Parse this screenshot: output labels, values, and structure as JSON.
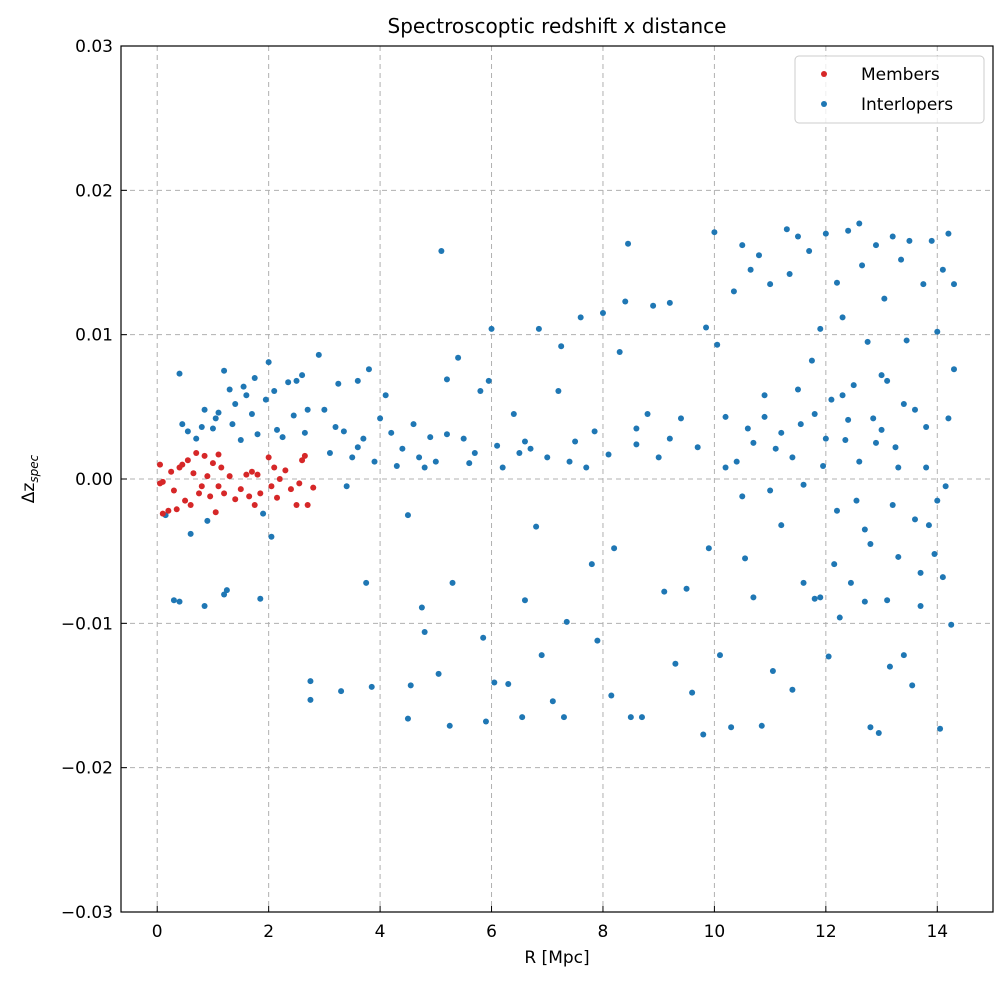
{
  "chart_data": {
    "type": "scatter",
    "title": "Spectroscoptic redshift x distance",
    "xlabel": "R [Mpc]",
    "ylabel": "Δz_spec",
    "xlim": [
      -0.65,
      15.0
    ],
    "ylim": [
      -0.03,
      0.03
    ],
    "xticks": [
      0,
      2,
      4,
      6,
      8,
      10,
      12,
      14
    ],
    "xtick_labels": [
      "0",
      "2",
      "4",
      "6",
      "8",
      "10",
      "12",
      "14"
    ],
    "yticks": [
      -0.03,
      -0.02,
      -0.01,
      0.0,
      0.01,
      0.02,
      0.03
    ],
    "ytick_labels": [
      "−0.03",
      "−0.02",
      "−0.01",
      "0.00",
      "0.01",
      "0.02",
      "0.03"
    ],
    "grid": true,
    "legend": {
      "placement": "top-right",
      "entries": [
        "Members",
        "Interlopers"
      ]
    },
    "series": [
      {
        "name": "Members",
        "color": "#d62728",
        "points": [
          [
            0.05,
            0.001
          ],
          [
            0.05,
            -0.0003
          ],
          [
            0.1,
            -0.0002
          ],
          [
            0.1,
            -0.0024
          ],
          [
            0.2,
            -0.0022
          ],
          [
            0.25,
            0.0005
          ],
          [
            0.3,
            -0.0008
          ],
          [
            0.35,
            -0.0021
          ],
          [
            0.4,
            0.0008
          ],
          [
            0.45,
            0.001
          ],
          [
            0.5,
            -0.0015
          ],
          [
            0.55,
            0.0013
          ],
          [
            0.6,
            -0.0018
          ],
          [
            0.65,
            0.0004
          ],
          [
            0.7,
            0.0018
          ],
          [
            0.75,
            -0.001
          ],
          [
            0.8,
            -0.0005
          ],
          [
            0.85,
            0.0016
          ],
          [
            0.9,
            0.0002
          ],
          [
            0.95,
            -0.0012
          ],
          [
            1.0,
            0.0011
          ],
          [
            1.05,
            -0.0023
          ],
          [
            1.1,
            0.0017
          ],
          [
            1.1,
            -0.0005
          ],
          [
            1.15,
            0.0008
          ],
          [
            1.2,
            -0.001
          ],
          [
            1.3,
            0.0002
          ],
          [
            1.4,
            -0.0014
          ],
          [
            1.5,
            -0.0007
          ],
          [
            1.6,
            0.0003
          ],
          [
            1.65,
            -0.0012
          ],
          [
            1.7,
            0.0005
          ],
          [
            1.75,
            -0.0018
          ],
          [
            1.8,
            0.0003
          ],
          [
            1.85,
            -0.001
          ],
          [
            2.0,
            0.0015
          ],
          [
            2.05,
            -0.0005
          ],
          [
            2.1,
            0.0008
          ],
          [
            2.15,
            -0.0013
          ],
          [
            2.2,
            0.0
          ],
          [
            2.3,
            0.0006
          ],
          [
            2.4,
            -0.0007
          ],
          [
            2.5,
            -0.0018
          ],
          [
            2.55,
            -0.0003
          ],
          [
            2.6,
            0.0013
          ],
          [
            2.65,
            0.0016
          ],
          [
            2.7,
            -0.0018
          ],
          [
            2.8,
            -0.0006
          ]
        ]
      },
      {
        "name": "Interlopers",
        "color": "#1f77b4",
        "points": [
          [
            0.15,
            -0.0025
          ],
          [
            0.3,
            -0.0084
          ],
          [
            0.4,
            -0.0085
          ],
          [
            0.4,
            0.0073
          ],
          [
            0.45,
            0.0038
          ],
          [
            0.55,
            0.0033
          ],
          [
            0.6,
            -0.0038
          ],
          [
            0.7,
            0.0028
          ],
          [
            0.8,
            0.0036
          ],
          [
            0.85,
            0.0048
          ],
          [
            0.85,
            -0.0088
          ],
          [
            0.9,
            -0.0029
          ],
          [
            1.0,
            0.0035
          ],
          [
            1.05,
            0.0042
          ],
          [
            1.1,
            0.0046
          ],
          [
            1.2,
            0.0075
          ],
          [
            1.2,
            -0.008
          ],
          [
            1.25,
            -0.0077
          ],
          [
            1.3,
            0.0062
          ],
          [
            1.35,
            0.0038
          ],
          [
            1.4,
            0.0052
          ],
          [
            1.5,
            0.0027
          ],
          [
            1.55,
            0.0064
          ],
          [
            1.6,
            0.0058
          ],
          [
            1.7,
            0.0045
          ],
          [
            1.75,
            0.007
          ],
          [
            1.8,
            0.0031
          ],
          [
            1.85,
            -0.0083
          ],
          [
            1.9,
            -0.0024
          ],
          [
            1.95,
            0.0055
          ],
          [
            2.0,
            0.0081
          ],
          [
            2.05,
            -0.004
          ],
          [
            2.1,
            0.0061
          ],
          [
            2.15,
            0.0034
          ],
          [
            2.25,
            0.0029
          ],
          [
            2.35,
            0.0067
          ],
          [
            2.45,
            0.0044
          ],
          [
            2.5,
            0.0068
          ],
          [
            2.6,
            0.0072
          ],
          [
            2.65,
            0.0032
          ],
          [
            2.7,
            0.0048
          ],
          [
            2.75,
            -0.014
          ],
          [
            2.75,
            -0.0153
          ],
          [
            2.9,
            0.0086
          ],
          [
            3.0,
            0.0048
          ],
          [
            3.1,
            0.0018
          ],
          [
            3.25,
            0.0066
          ],
          [
            3.3,
            -0.0147
          ],
          [
            3.35,
            0.0033
          ],
          [
            3.4,
            -0.0005
          ],
          [
            3.5,
            0.0015
          ],
          [
            3.6,
            0.0068
          ],
          [
            3.7,
            0.0028
          ],
          [
            3.75,
            -0.0072
          ],
          [
            3.8,
            0.0076
          ],
          [
            3.85,
            -0.0144
          ],
          [
            3.9,
            0.0012
          ],
          [
            4.0,
            0.0042
          ],
          [
            4.1,
            0.0058
          ],
          [
            4.2,
            0.0032
          ],
          [
            4.3,
            0.0009
          ],
          [
            4.4,
            0.0021
          ],
          [
            4.5,
            -0.0025
          ],
          [
            4.5,
            -0.0166
          ],
          [
            4.55,
            -0.0143
          ],
          [
            4.6,
            0.0038
          ],
          [
            4.7,
            0.0015
          ],
          [
            4.75,
            -0.0089
          ],
          [
            4.8,
            -0.0106
          ],
          [
            4.9,
            0.0029
          ],
          [
            5.0,
            0.0012
          ],
          [
            5.05,
            -0.0135
          ],
          [
            5.1,
            0.0158
          ],
          [
            5.2,
            0.0069
          ],
          [
            5.25,
            -0.0171
          ],
          [
            5.3,
            -0.0072
          ],
          [
            5.4,
            0.0084
          ],
          [
            5.5,
            0.0028
          ],
          [
            5.6,
            0.0011
          ],
          [
            5.8,
            0.0061
          ],
          [
            5.85,
            -0.011
          ],
          [
            5.9,
            -0.0168
          ],
          [
            5.95,
            0.0068
          ],
          [
            6.0,
            0.0104
          ],
          [
            6.05,
            -0.0141
          ],
          [
            6.1,
            0.0023
          ],
          [
            6.2,
            0.0008
          ],
          [
            6.3,
            -0.0142
          ],
          [
            6.4,
            0.0045
          ],
          [
            6.5,
            0.0018
          ],
          [
            6.55,
            -0.0165
          ],
          [
            6.6,
            -0.0084
          ],
          [
            6.7,
            0.0021
          ],
          [
            6.8,
            -0.0033
          ],
          [
            6.85,
            0.0104
          ],
          [
            6.9,
            -0.0122
          ],
          [
            7.0,
            0.0015
          ],
          [
            7.1,
            -0.0154
          ],
          [
            7.2,
            0.0061
          ],
          [
            7.25,
            0.0092
          ],
          [
            7.3,
            -0.0165
          ],
          [
            7.35,
            -0.0099
          ],
          [
            7.5,
            0.0026
          ],
          [
            7.6,
            0.0112
          ],
          [
            7.7,
            0.0008
          ],
          [
            7.8,
            -0.0059
          ],
          [
            7.85,
            0.0033
          ],
          [
            7.9,
            -0.0112
          ],
          [
            8.0,
            0.0115
          ],
          [
            8.1,
            0.0017
          ],
          [
            8.15,
            -0.015
          ],
          [
            8.2,
            -0.0048
          ],
          [
            8.3,
            0.0088
          ],
          [
            8.4,
            0.0123
          ],
          [
            8.45,
            0.0163
          ],
          [
            8.5,
            -0.0165
          ],
          [
            8.6,
            0.0024
          ],
          [
            8.7,
            -0.0165
          ],
          [
            8.8,
            0.0045
          ],
          [
            8.9,
            0.012
          ],
          [
            9.0,
            0.0015
          ],
          [
            9.1,
            -0.0078
          ],
          [
            9.2,
            0.0122
          ],
          [
            9.3,
            -0.0128
          ],
          [
            9.4,
            0.0042
          ],
          [
            9.5,
            -0.0076
          ],
          [
            9.6,
            -0.0148
          ],
          [
            9.7,
            0.0022
          ],
          [
            9.8,
            -0.0177
          ],
          [
            9.85,
            0.0105
          ],
          [
            9.9,
            -0.0048
          ],
          [
            10.0,
            0.0171
          ],
          [
            10.05,
            0.0093
          ],
          [
            10.1,
            -0.0122
          ],
          [
            10.2,
            0.0043
          ],
          [
            10.3,
            -0.0172
          ],
          [
            10.35,
            0.013
          ],
          [
            10.4,
            0.0012
          ],
          [
            10.5,
            0.0162
          ],
          [
            10.55,
            -0.0055
          ],
          [
            10.6,
            0.0035
          ],
          [
            10.65,
            0.0145
          ],
          [
            10.7,
            -0.0082
          ],
          [
            10.8,
            0.0155
          ],
          [
            10.85,
            -0.0171
          ],
          [
            10.9,
            0.0058
          ],
          [
            11.0,
            0.0135
          ],
          [
            11.05,
            -0.0133
          ],
          [
            11.1,
            0.0021
          ],
          [
            11.2,
            -0.0032
          ],
          [
            11.3,
            0.0173
          ],
          [
            11.35,
            0.0142
          ],
          [
            11.4,
            -0.0146
          ],
          [
            11.5,
            0.0168
          ],
          [
            11.55,
            0.0038
          ],
          [
            11.6,
            -0.0072
          ],
          [
            11.7,
            0.0158
          ],
          [
            11.75,
            0.0082
          ],
          [
            11.8,
            -0.0083
          ],
          [
            11.9,
            0.0104
          ],
          [
            11.95,
            0.0009
          ],
          [
            12.0,
            0.017
          ],
          [
            12.05,
            -0.0123
          ],
          [
            12.1,
            0.0055
          ],
          [
            12.15,
            -0.0059
          ],
          [
            12.2,
            0.0136
          ],
          [
            12.25,
            -0.0096
          ],
          [
            12.3,
            0.0112
          ],
          [
            12.35,
            0.0027
          ],
          [
            12.4,
            0.0172
          ],
          [
            12.45,
            -0.0072
          ],
          [
            12.5,
            0.0065
          ],
          [
            12.55,
            -0.0015
          ],
          [
            12.6,
            0.0177
          ],
          [
            12.65,
            0.0148
          ],
          [
            12.7,
            -0.0035
          ],
          [
            12.75,
            0.0095
          ],
          [
            12.8,
            -0.0172
          ],
          [
            12.85,
            0.0042
          ],
          [
            12.9,
            0.0162
          ],
          [
            12.95,
            -0.0176
          ],
          [
            13.0,
            0.0072
          ],
          [
            13.05,
            0.0125
          ],
          [
            13.1,
            -0.0084
          ],
          [
            13.15,
            -0.013
          ],
          [
            13.2,
            0.0168
          ],
          [
            13.25,
            0.0022
          ],
          [
            13.3,
            -0.0054
          ],
          [
            13.35,
            0.0152
          ],
          [
            13.4,
            -0.0122
          ],
          [
            13.45,
            0.0096
          ],
          [
            13.5,
            0.0165
          ],
          [
            13.55,
            -0.0143
          ],
          [
            13.6,
            0.0048
          ],
          [
            13.7,
            -0.0088
          ],
          [
            13.75,
            0.0135
          ],
          [
            13.8,
            0.0008
          ],
          [
            13.85,
            -0.0032
          ],
          [
            13.9,
            0.0165
          ],
          [
            13.95,
            -0.0052
          ],
          [
            14.0,
            0.0102
          ],
          [
            14.05,
            -0.0173
          ],
          [
            14.1,
            0.0145
          ],
          [
            14.15,
            -0.0005
          ],
          [
            14.2,
            0.017
          ],
          [
            14.25,
            -0.0101
          ],
          [
            14.3,
            0.0076
          ],
          [
            14.3,
            0.0135
          ],
          [
            10.2,
            0.0008
          ],
          [
            10.5,
            -0.0012
          ],
          [
            10.7,
            0.0025
          ],
          [
            11.0,
            -0.0008
          ],
          [
            11.2,
            0.0032
          ],
          [
            11.4,
            0.0015
          ],
          [
            11.6,
            -0.0004
          ],
          [
            11.8,
            0.0045
          ],
          [
            12.0,
            0.0028
          ],
          [
            12.2,
            -0.0022
          ],
          [
            12.4,
            0.0041
          ],
          [
            12.6,
            0.0012
          ],
          [
            12.8,
            -0.0045
          ],
          [
            13.0,
            0.0034
          ],
          [
            13.2,
            -0.0018
          ],
          [
            13.4,
            0.0052
          ],
          [
            13.6,
            -0.0028
          ],
          [
            13.8,
            0.0036
          ],
          [
            14.0,
            -0.0015
          ],
          [
            14.2,
            0.0042
          ],
          [
            11.5,
            0.0062
          ],
          [
            12.3,
            0.0058
          ],
          [
            13.1,
            0.0068
          ],
          [
            13.7,
            -0.0065
          ],
          [
            12.7,
            -0.0085
          ],
          [
            11.9,
            -0.0082
          ],
          [
            14.1,
            -0.0068
          ],
          [
            12.9,
            0.0025
          ],
          [
            13.3,
            0.0008
          ],
          [
            10.9,
            0.0043
          ],
          [
            8.6,
            0.0035
          ],
          [
            9.2,
            0.0028
          ],
          [
            7.4,
            0.0012
          ],
          [
            6.6,
            0.0026
          ],
          [
            5.7,
            0.0018
          ],
          [
            5.2,
            0.0031
          ],
          [
            4.8,
            0.0008
          ],
          [
            3.6,
            0.0022
          ],
          [
            3.2,
            0.0036
          ]
        ]
      }
    ]
  }
}
